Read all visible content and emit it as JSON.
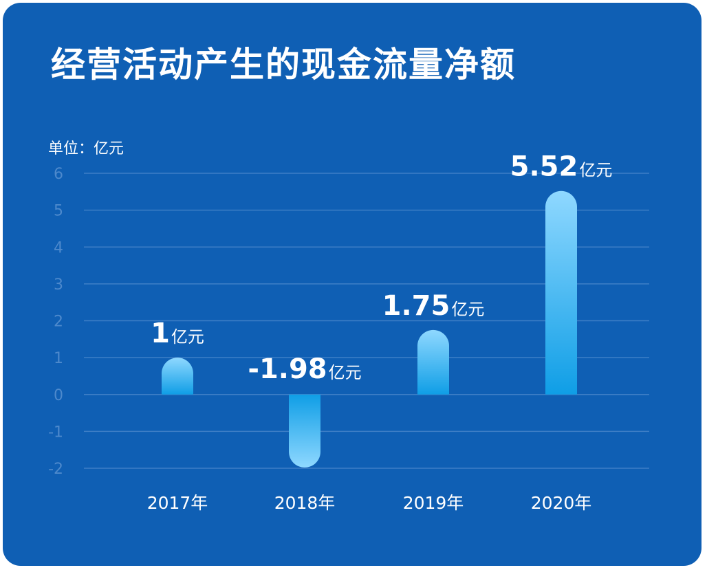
{
  "title": "经营活动产生的现金流量净额",
  "unit_label": "单位：亿元",
  "colors": {
    "background": "#0f5fb4",
    "grid": "#3f7fc6",
    "tick": "#4d89cc",
    "bar_top": "#8fd8ff",
    "bar_bottom": "#0f9ee6",
    "text": "#ffffff"
  },
  "chart_data": {
    "type": "bar",
    "title": "经营活动产生的现金流量净额",
    "ylabel": "单位：亿元",
    "xlabel": "",
    "categories": [
      "2017年",
      "2018年",
      "2019年",
      "2020年"
    ],
    "values": [
      1,
      -1.98,
      1.75,
      5.52
    ],
    "data_labels": [
      {
        "number": "1",
        "unit": "亿元"
      },
      {
        "number": "-1.98",
        "unit": "亿元"
      },
      {
        "number": "1.75",
        "unit": "亿元"
      },
      {
        "number": "5.52",
        "unit": "亿元"
      }
    ],
    "ylim": [
      -2,
      6
    ],
    "yticks": [
      "6",
      "5",
      "4",
      "3",
      "2",
      "1",
      "0",
      "-1",
      "-2"
    ],
    "grid": true,
    "legend": "none"
  }
}
